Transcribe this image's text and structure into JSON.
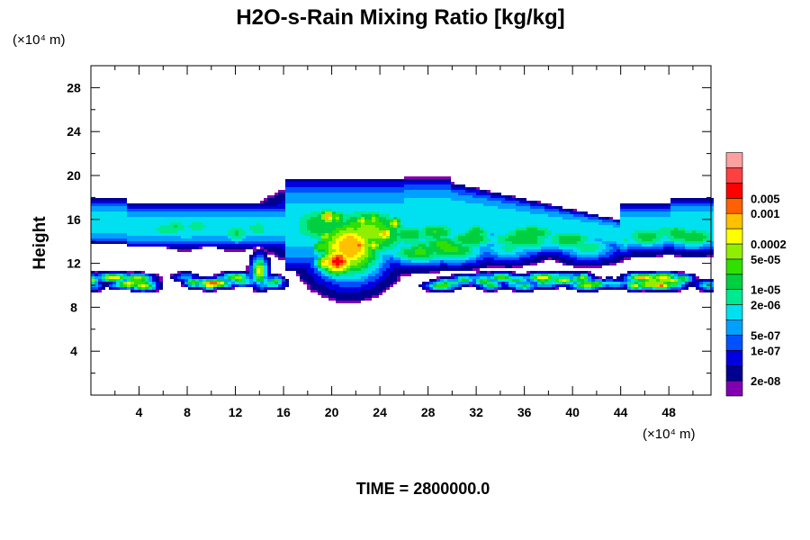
{
  "chart_data": {
    "type": "heatmap",
    "title": "H2O-s-Rain Mixing Ratio [kg/kg]",
    "ylabel": "Height",
    "x_unit_label": "(×10⁴ m)",
    "y_unit_label": "(×10⁴ m)",
    "time_label": "TIME = 2800000.0",
    "xlim": [
      0,
      51.5
    ],
    "ylim": [
      0,
      30
    ],
    "x_ticks": [
      4,
      8,
      12,
      16,
      20,
      24,
      28,
      32,
      36,
      40,
      44,
      48
    ],
    "y_ticks": [
      4,
      8,
      12,
      16,
      20,
      24,
      28
    ],
    "grid": false,
    "colorbar": {
      "colors": [
        "#8000b0",
        "#000090",
        "#0000e0",
        "#0050ff",
        "#00a0ff",
        "#00e0f0",
        "#00e890",
        "#00d040",
        "#30e000",
        "#90ee00",
        "#ffff00",
        "#ffc000",
        "#ff6000",
        "#ff0000",
        "#ff4040",
        "#ffa0a0"
      ],
      "labels": [
        {
          "index": 1,
          "text": "2e-08"
        },
        {
          "index": 3,
          "text": "1e-07"
        },
        {
          "index": 4,
          "text": "5e-07"
        },
        {
          "index": 6,
          "text": "2e-06"
        },
        {
          "index": 7,
          "text": "1e-05"
        },
        {
          "index": 9,
          "text": "5e-05"
        },
        {
          "index": 10,
          "text": "0.0002"
        },
        {
          "index": 12,
          "text": "0.001"
        },
        {
          "index": 13,
          "text": "0.005"
        }
      ]
    },
    "features": [
      {
        "name": "upper-anvil-layer",
        "x_range": [
          0,
          51.5
        ],
        "y_range": [
          13,
          18
        ],
        "peak_level": 8
      },
      {
        "name": "central-convective-core",
        "x_center": 21.5,
        "y_center": 13.5,
        "peak_level": 13
      },
      {
        "name": "lower-rain-band",
        "x_range": [
          0,
          51.5
        ],
        "y_range": [
          9.6,
          11
        ],
        "peak_level": 13
      }
    ]
  }
}
